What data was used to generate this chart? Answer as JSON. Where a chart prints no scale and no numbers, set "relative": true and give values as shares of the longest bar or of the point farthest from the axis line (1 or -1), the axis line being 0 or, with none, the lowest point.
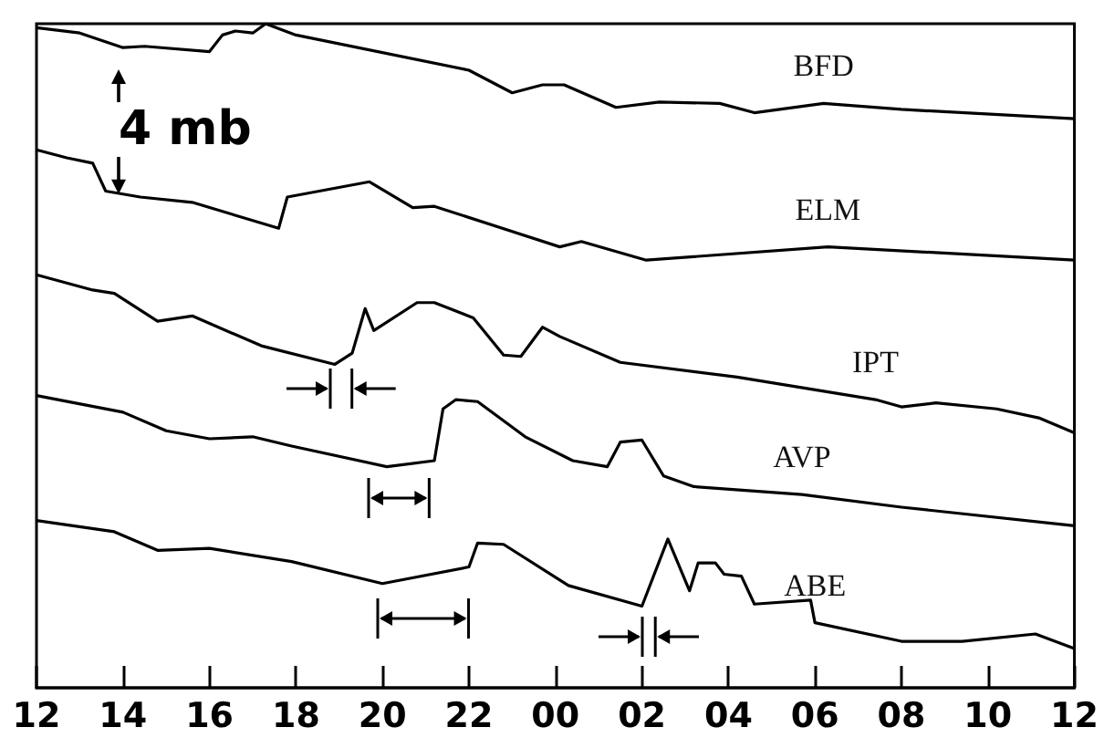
{
  "chart_data": {
    "type": "line",
    "relative": true,
    "xlim": [
      12,
      36
    ],
    "xticks": [
      {
        "value": 12,
        "label": "12"
      },
      {
        "value": 14,
        "label": "14"
      },
      {
        "value": 16,
        "label": "16"
      },
      {
        "value": 18,
        "label": "18"
      },
      {
        "value": 20,
        "label": "20"
      },
      {
        "value": 22,
        "label": "22"
      },
      {
        "value": 24,
        "label": "00"
      },
      {
        "value": 26,
        "label": "02"
      },
      {
        "value": 28,
        "label": "04"
      },
      {
        "value": 30,
        "label": "06"
      },
      {
        "value": 32,
        "label": "08"
      },
      {
        "value": 34,
        "label": "10"
      },
      {
        "value": 36,
        "label": "12"
      }
    ],
    "marker": "none",
    "line_style": "solid",
    "grid": false,
    "legend": false,
    "annotations": [
      "4 mb"
    ],
    "series": [
      {
        "name": "BFD",
        "color": "#000000",
        "x": [
          12,
          13,
          14,
          14.5,
          16,
          16.3,
          16.6,
          17,
          17.3,
          18,
          22,
          23,
          23.7,
          24.2,
          25.4,
          26.4,
          27.8,
          28.6,
          30.2,
          32,
          36
        ],
        "values": [
          0.994,
          0.986,
          0.964,
          0.966,
          0.958,
          0.983,
          0.989,
          0.986,
          1.0,
          0.983,
          0.93,
          0.896,
          0.908,
          0.908,
          0.874,
          0.882,
          0.88,
          0.866,
          0.88,
          0.871,
          0.857
        ]
      },
      {
        "name": "ELM",
        "color": "#000000",
        "x": [
          12,
          12.7,
          13.3,
          13.6,
          14.4,
          15.6,
          17.6,
          17.8,
          19.7,
          20.7,
          21.2,
          24.1,
          24.6,
          26.1,
          30.3,
          36
        ],
        "values": [
          0.81,
          0.798,
          0.79,
          0.748,
          0.739,
          0.731,
          0.692,
          0.739,
          0.762,
          0.723,
          0.725,
          0.664,
          0.672,
          0.644,
          0.664,
          0.644
        ]
      },
      {
        "name": "IPT",
        "color": "#000000",
        "x": [
          12,
          13.3,
          13.8,
          14.8,
          15.6,
          17.2,
          18.9,
          19.3,
          19.6,
          19.8,
          20.8,
          21.2,
          22.1,
          22.8,
          23.2,
          23.7,
          24.1,
          25.5,
          28.2,
          31.4,
          32,
          32.8,
          34.2,
          35.2,
          36
        ],
        "values": [
          0.622,
          0.599,
          0.594,
          0.552,
          0.56,
          0.515,
          0.487,
          0.504,
          0.571,
          0.538,
          0.58,
          0.58,
          0.557,
          0.501,
          0.499,
          0.543,
          0.529,
          0.49,
          0.468,
          0.434,
          0.423,
          0.429,
          0.42,
          0.406,
          0.384
        ]
      },
      {
        "name": "AVP",
        "color": "#000000",
        "x": [
          12,
          14,
          15,
          16,
          17,
          17.9,
          20.1,
          21.2,
          21.4,
          21.7,
          22.2,
          23.3,
          24.4,
          25.2,
          25.5,
          26,
          26.5,
          27.2,
          29.7,
          32,
          36
        ],
        "values": [
          0.44,
          0.415,
          0.387,
          0.375,
          0.378,
          0.364,
          0.333,
          0.342,
          0.42,
          0.434,
          0.431,
          0.378,
          0.342,
          0.333,
          0.37,
          0.373,
          0.319,
          0.303,
          0.291,
          0.272,
          0.244
        ]
      },
      {
        "name": "ABE",
        "color": "#000000",
        "x": [
          12,
          13.8,
          14.8,
          16,
          17.9,
          20,
          22,
          22.2,
          22.8,
          24.3,
          26,
          26.6,
          27.1,
          27.3,
          27.7,
          27.9,
          28.3,
          28.6,
          29.9,
          30,
          32,
          33.4,
          35.1,
          36
        ],
        "values": [
          0.252,
          0.235,
          0.207,
          0.21,
          0.19,
          0.157,
          0.182,
          0.218,
          0.216,
          0.154,
          0.123,
          0.224,
          0.146,
          0.188,
          0.188,
          0.171,
          0.168,
          0.126,
          0.132,
          0.098,
          0.07,
          0.07,
          0.081,
          0.059
        ]
      }
    ]
  }
}
